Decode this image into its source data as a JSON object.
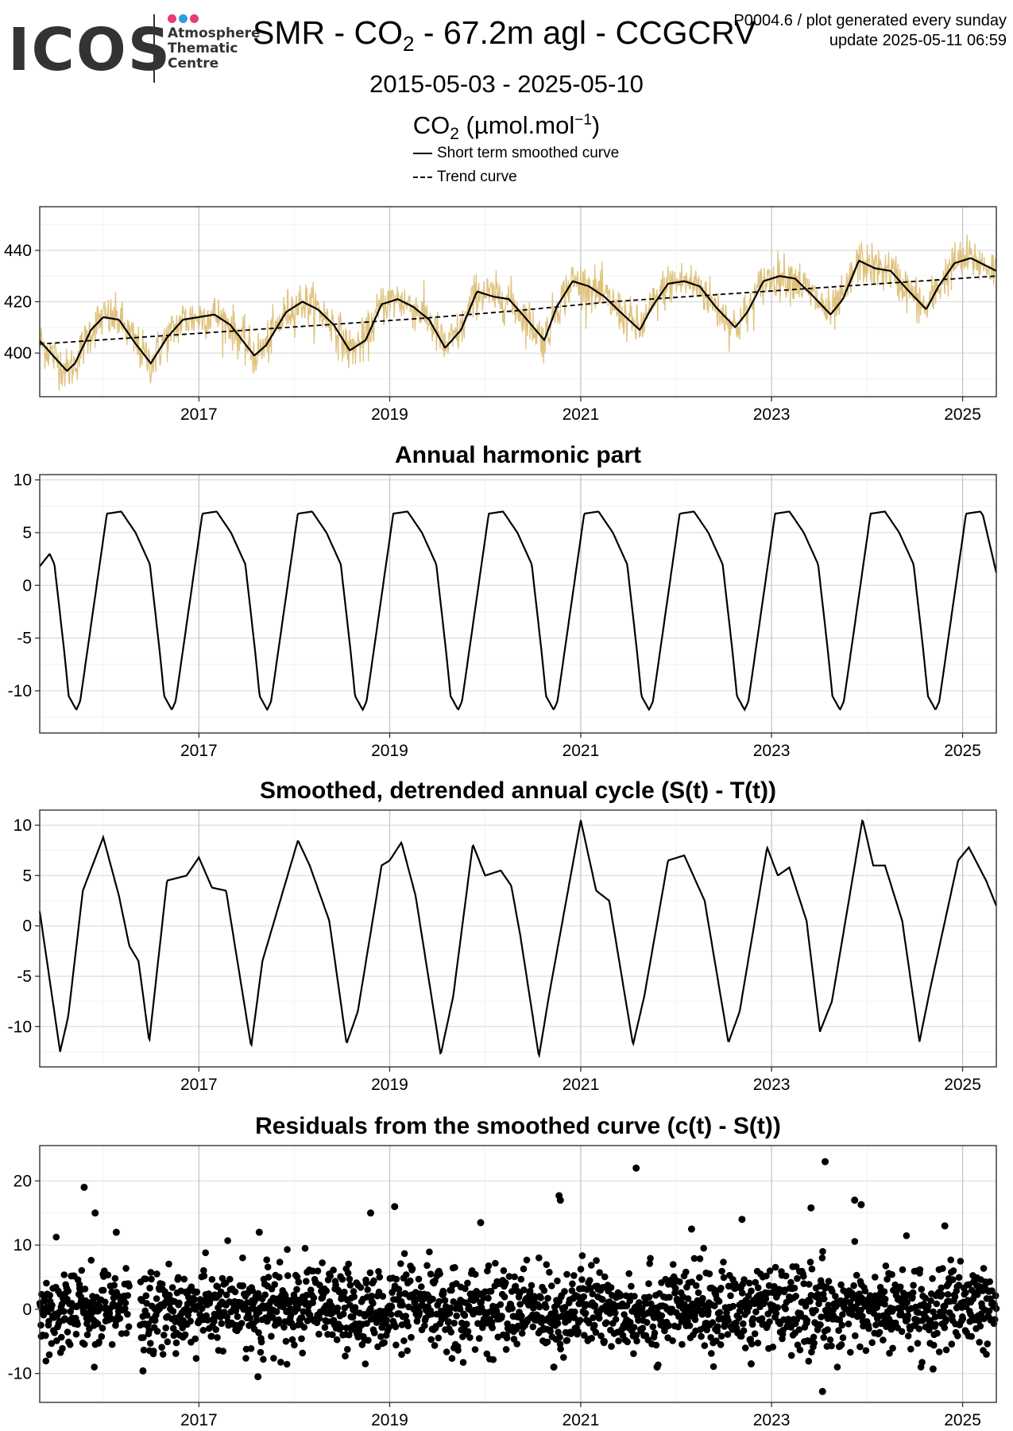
{
  "header": {
    "logo_text": "ICOS",
    "logo_sub": [
      "Atmosphere",
      "Thematic",
      "Centre"
    ],
    "logo_dot_colors": [
      "#e63c78",
      "#2b9fe0",
      "#e63c78"
    ],
    "title_main": "SMR - CO",
    "title_sub": "2",
    "title_rest": " - 67.2m agl - CCGCRV",
    "meta_line1": "P0004.6 / plot generated every sunday",
    "meta_line2": "update  2025-05-11 06:59",
    "date_range": "2015-05-03 - 2025-05-10",
    "ylabel_main": "CO",
    "ylabel_sub": "2",
    "ylabel_unit": " (µmol.mol",
    "ylabel_sup": "−1",
    "ylabel_close": ")"
  },
  "legend": {
    "items": [
      {
        "label": "Short term smoothed curve",
        "style": "solid"
      },
      {
        "label": "Trend curve",
        "style": "dashed"
      }
    ]
  },
  "chart_data": [
    {
      "type": "line",
      "title": "",
      "x_range": [
        "2015-05-03",
        "2025-05-10"
      ],
      "ylim": [
        383,
        457
      ],
      "y_ticks": [
        400,
        420,
        440
      ],
      "x_tick_labels": [
        "2017",
        "2019",
        "2021",
        "2023",
        "2025"
      ],
      "grid": true,
      "colors": {
        "raw": "#dfc27d",
        "smooth": "#000000",
        "trend": "#000000"
      },
      "series": [
        {
          "name": "Short term smoothed curve",
          "style": "solid",
          "x": [
            "2015-05-01",
            "2015-08-15",
            "2015-09-15",
            "2015-11-15",
            "2016-01-01",
            "2016-03-01",
            "2016-05-01",
            "2016-07-01",
            "2016-09-01",
            "2016-11-01",
            "2017-01-01",
            "2017-03-01",
            "2017-05-01",
            "2017-08-01",
            "2017-09-15",
            "2017-12-01",
            "2018-02-01",
            "2018-04-01",
            "2018-06-01",
            "2018-08-01",
            "2018-10-01",
            "2018-12-01",
            "2019-02-01",
            "2019-04-01",
            "2019-06-01",
            "2019-08-01",
            "2019-10-01",
            "2019-12-01",
            "2020-02-01",
            "2020-04-01",
            "2020-06-01",
            "2020-08-15",
            "2020-10-01",
            "2020-12-01",
            "2021-02-01",
            "2021-04-01",
            "2021-06-01",
            "2021-08-15",
            "2021-10-01",
            "2021-12-01",
            "2022-02-01",
            "2022-04-01",
            "2022-06-01",
            "2022-08-15",
            "2022-10-01",
            "2022-12-01",
            "2023-02-01",
            "2023-04-01",
            "2023-06-01",
            "2023-08-15",
            "2023-10-01",
            "2023-12-01",
            "2024-02-01",
            "2024-04-01",
            "2024-06-01",
            "2024-08-15",
            "2024-10-01",
            "2024-12-01",
            "2025-02-01",
            "2025-05-10"
          ],
          "values": [
            405,
            393,
            396,
            409,
            414,
            413,
            404,
            396,
            406,
            413,
            414,
            415,
            411,
            399,
            403,
            416,
            420,
            417,
            411,
            401,
            405,
            419,
            421,
            418,
            413,
            402,
            409,
            424,
            422,
            421,
            414,
            405,
            418,
            428,
            426,
            422,
            416,
            409,
            418,
            427,
            428,
            426,
            418,
            410,
            416,
            428,
            430,
            429,
            423,
            415,
            421,
            436,
            433,
            432,
            425,
            417,
            426,
            435,
            437,
            432
          ]
        },
        {
          "name": "Trend curve",
          "style": "dashed",
          "x": [
            "2015-05-01",
            "2016-05-01",
            "2017-05-01",
            "2018-05-01",
            "2019-05-01",
            "2020-05-01",
            "2021-05-01",
            "2022-05-01",
            "2023-05-01",
            "2024-05-01",
            "2025-05-10"
          ],
          "values": [
            403.5,
            406,
            408.5,
            411,
            413.5,
            416.5,
            420,
            422.5,
            425,
            427.5,
            430
          ]
        }
      ]
    },
    {
      "type": "line",
      "title": "Annual harmonic part",
      "x_range": [
        "2015-05-03",
        "2025-05-10"
      ],
      "ylim": [
        -14,
        10.5
      ],
      "y_ticks": [
        -10,
        -5,
        0,
        5,
        10
      ],
      "x_tick_labels": [
        "2017",
        "2019",
        "2021",
        "2023",
        "2025"
      ],
      "grid": true,
      "pattern": {
        "x_frac": [
          0,
          0.15,
          0.3,
          0.45,
          0.55,
          0.6,
          0.68,
          0.72,
          1.0
        ],
        "values": [
          6.8,
          7.0,
          5.0,
          2.0,
          -6.0,
          -10.5,
          -11.8,
          -11.0,
          6.8
        ]
      },
      "end_values": {
        "start": 1.8,
        "end": 1.2
      }
    },
    {
      "type": "line",
      "title": "Smoothed, detrended annual cycle (S(t) - T(t))",
      "x_range": [
        "2015-05-03",
        "2025-05-10"
      ],
      "ylim": [
        -14,
        11.5
      ],
      "y_ticks": [
        -10,
        -5,
        0,
        5,
        10
      ],
      "x_tick_labels": [
        "2017",
        "2019",
        "2021",
        "2023",
        "2025"
      ],
      "grid": true,
      "x": [
        "2015-05-01",
        "2015-07-20",
        "2015-08-20",
        "2015-10-15",
        "2016-01-01",
        "2016-03-01",
        "2016-04-10",
        "2016-05-15",
        "2016-06-25",
        "2016-09-01",
        "2016-11-15",
        "2017-01-01",
        "2017-02-20",
        "2017-04-15",
        "2017-07-20",
        "2017-09-01",
        "2018-01-15",
        "2018-03-01",
        "2018-05-15",
        "2018-07-20",
        "2018-09-01",
        "2018-12-01",
        "2019-01-01",
        "2019-02-15",
        "2019-04-10",
        "2019-07-15",
        "2019-09-01",
        "2019-11-15",
        "2020-01-01",
        "2020-03-01",
        "2020-04-10",
        "2020-05-15",
        "2020-07-25",
        "2020-09-01",
        "2021-01-01",
        "2021-03-01",
        "2021-04-20",
        "2021-07-20",
        "2021-09-01",
        "2021-12-01",
        "2022-02-01",
        "2022-04-20",
        "2022-07-20",
        "2022-09-01",
        "2022-12-15",
        "2023-01-25",
        "2023-03-10",
        "2023-05-15",
        "2023-07-05",
        "2023-08-20",
        "2023-12-15",
        "2024-01-25",
        "2024-03-10",
        "2024-05-15",
        "2024-07-20",
        "2024-09-01",
        "2024-12-15",
        "2025-01-25",
        "2025-04-01",
        "2025-05-10"
      ],
      "values": [
        1.8,
        -12.5,
        -9.0,
        3.5,
        8.8,
        3.0,
        -2.0,
        -3.5,
        -11.5,
        4.5,
        5.0,
        6.8,
        3.8,
        3.5,
        -12.0,
        -3.5,
        8.5,
        6.0,
        0.5,
        -11.7,
        -8.5,
        6.0,
        6.5,
        8.3,
        3.0,
        -12.8,
        -7.0,
        8.1,
        5.0,
        5.5,
        4.0,
        -1.0,
        -13.0,
        -7.0,
        10.5,
        3.5,
        2.5,
        -11.8,
        -7.0,
        6.5,
        7.0,
        2.5,
        -11.6,
        -8.5,
        7.8,
        5.0,
        5.8,
        0.5,
        -10.5,
        -7.5,
        10.6,
        6.0,
        6.0,
        0.5,
        -11.5,
        -6.0,
        6.5,
        7.8,
        4.5,
        2.0
      ]
    },
    {
      "type": "scatter",
      "title": "Residuals from the smoothed curve (c(t) - S(t))",
      "x_range": [
        "2015-05-03",
        "2025-05-10"
      ],
      "ylim": [
        -14.5,
        25.5
      ],
      "y_ticks": [
        -10,
        0,
        10,
        20
      ],
      "x_tick_labels": [
        "2017",
        "2019",
        "2021",
        "2023",
        "2025"
      ],
      "grid": true,
      "typical_spread": 3.2,
      "gap": [
        "2016-04-10",
        "2016-05-20"
      ],
      "outliers": [
        {
          "x": "2015-10-20",
          "y": 19.0
        },
        {
          "x": "2015-12-01",
          "y": 15.0
        },
        {
          "x": "2016-02-20",
          "y": 12.0
        },
        {
          "x": "2016-06-01",
          "y": -9.6
        },
        {
          "x": "2017-08-15",
          "y": -10.5
        },
        {
          "x": "2017-08-20",
          "y": 12.0
        },
        {
          "x": "2018-10-20",
          "y": 15.0
        },
        {
          "x": "2019-01-20",
          "y": 16.0
        },
        {
          "x": "2019-12-15",
          "y": 13.5
        },
        {
          "x": "2020-09-20",
          "y": -9.0
        },
        {
          "x": "2020-10-10",
          "y": 17.7
        },
        {
          "x": "2020-10-15",
          "y": 17.0
        },
        {
          "x": "2021-08-01",
          "y": 22.0
        },
        {
          "x": "2021-10-20",
          "y": -9.0
        },
        {
          "x": "2022-03-01",
          "y": 12.5
        },
        {
          "x": "2022-09-10",
          "y": 14.0
        },
        {
          "x": "2022-10-15",
          "y": -8.5
        },
        {
          "x": "2023-06-01",
          "y": 15.8
        },
        {
          "x": "2023-07-25",
          "y": 23.0
        },
        {
          "x": "2023-07-15",
          "y": -12.8
        },
        {
          "x": "2023-11-15",
          "y": 17.0
        },
        {
          "x": "2023-12-10",
          "y": 16.3
        },
        {
          "x": "2024-09-10",
          "y": -9.3
        },
        {
          "x": "2024-10-25",
          "y": 13.0
        }
      ]
    }
  ]
}
